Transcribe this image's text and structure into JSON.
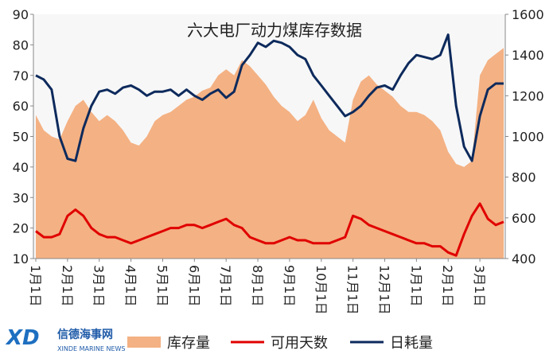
{
  "chart_data": {
    "type": "combo",
    "title": "六大电厂动力煤库存数据",
    "categories": [
      "1月1日",
      null,
      null,
      null,
      "2月1日",
      null,
      null,
      null,
      "3月1日",
      null,
      null,
      null,
      "4月1日",
      null,
      null,
      null,
      "5月1日",
      null,
      null,
      null,
      "6月1日",
      null,
      null,
      null,
      "7月1日",
      null,
      null,
      null,
      "8月1日",
      null,
      null,
      null,
      "9月1日",
      null,
      null,
      null,
      "10月1日",
      null,
      null,
      null,
      "11月1日",
      null,
      null,
      null,
      "12月1日",
      null,
      null,
      null,
      "1月1日",
      null,
      null,
      null,
      "2月1日",
      null,
      null,
      null,
      "3月1日",
      null,
      null,
      null
    ],
    "ylim": [
      10,
      90
    ],
    "yticks": [
      10,
      20,
      30,
      40,
      50,
      60,
      70,
      80,
      90
    ],
    "y2lim": [
      400,
      1600
    ],
    "y2ticks": [
      400,
      600,
      800,
      1000,
      1200,
      1400,
      1600
    ],
    "legend": "bottom",
    "series": [
      {
        "name": "库存量",
        "kind": "area",
        "axis": "y",
        "color": "#f4b183",
        "values": [
          57,
          52,
          50,
          49,
          55,
          60,
          62,
          58,
          55,
          57,
          55,
          52,
          48,
          47,
          50,
          55,
          57,
          58,
          60,
          62,
          63,
          65,
          66,
          70,
          72,
          70,
          75,
          73,
          70,
          67,
          63,
          60,
          58,
          55,
          57,
          62,
          56,
          52,
          50,
          48,
          62,
          68,
          70,
          67,
          65,
          63,
          60,
          58,
          58,
          57,
          55,
          52,
          45,
          41,
          40,
          42,
          70,
          75,
          77,
          79
        ]
      },
      {
        "name": "可用天数",
        "kind": "line",
        "axis": "y",
        "color": "#e00000",
        "values": [
          19,
          17,
          17,
          18,
          24,
          26,
          24,
          20,
          18,
          17,
          17,
          16,
          15,
          16,
          17,
          18,
          19,
          20,
          20,
          21,
          21,
          20,
          21,
          22,
          23,
          21,
          20,
          17,
          16,
          15,
          15,
          16,
          17,
          16,
          16,
          15,
          15,
          15,
          16,
          17,
          24,
          23,
          21,
          20,
          19,
          18,
          17,
          16,
          15,
          15,
          14,
          14,
          12,
          11,
          18,
          24,
          28,
          23,
          21,
          22
        ]
      },
      {
        "name": "日耗量",
        "kind": "line",
        "axis": "y2",
        "color": "#0d2a5c",
        "values": [
          1300,
          1280,
          1230,
          1000,
          890,
          880,
          1040,
          1150,
          1220,
          1230,
          1210,
          1240,
          1250,
          1230,
          1200,
          1220,
          1220,
          1230,
          1200,
          1230,
          1200,
          1180,
          1210,
          1230,
          1190,
          1220,
          1350,
          1400,
          1460,
          1440,
          1470,
          1460,
          1440,
          1400,
          1380,
          1300,
          1250,
          1200,
          1150,
          1100,
          1120,
          1150,
          1200,
          1240,
          1250,
          1230,
          1300,
          1360,
          1400,
          1390,
          1380,
          1400,
          1500,
          1150,
          950,
          880,
          1100,
          1230,
          1260,
          1260
        ]
      }
    ]
  },
  "logo": {
    "mark": "XD",
    "name": "信德海事网",
    "sub": "XINDE MARINE NEWS"
  }
}
